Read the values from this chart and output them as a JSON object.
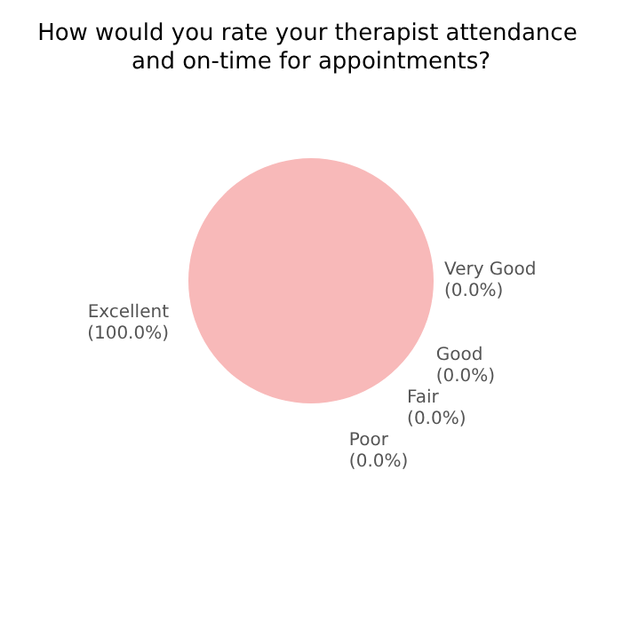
{
  "chart_data": {
    "type": "pie",
    "title": "How would you rate your therapist attendance and on-time for appointments?",
    "categories": [
      "Excellent",
      "Very Good",
      "Good",
      "Fair",
      "Poor"
    ],
    "values": [
      100,
      0,
      0,
      0,
      0
    ],
    "colors": [
      "#f8b9b9",
      "#f9d3a8",
      "#c5e0b4",
      "#a9cce3",
      "#d7bde2"
    ],
    "value_labels": [
      "(100.0%)",
      "(0.0%)",
      "(0.0%)",
      "(0.0%)",
      "(0.0%)"
    ],
    "legend": false
  }
}
